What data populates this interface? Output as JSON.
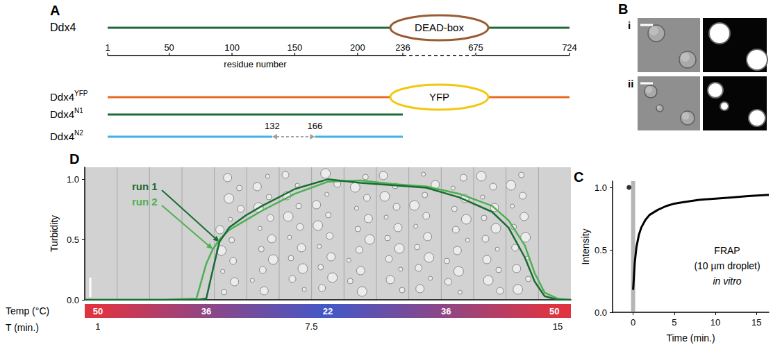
{
  "diagram": {
    "panel": "A",
    "axis": {
      "ticks": [
        1,
        50,
        100,
        150,
        200,
        236,
        675,
        724
      ],
      "title": "residue number"
    },
    "constructs": [
      {
        "name": "Ddx4",
        "start": 1,
        "end": 724,
        "color": "#1d6b38",
        "domain": {
          "label": "DEAD-box",
          "start": 236,
          "end": 675,
          "color": "#9a5b32"
        }
      },
      {
        "name": "Ddx4",
        "superscript": "YFP",
        "start": 1,
        "end": 724,
        "color": "#ea6a22",
        "domain": {
          "label": "YFP",
          "start": 236,
          "end": 675,
          "color": "#f2c80f"
        }
      },
      {
        "name": "Ddx4",
        "superscript": "N1",
        "start": 1,
        "end": 236,
        "color": "#1d6b38"
      },
      {
        "name": "Ddx4",
        "superscript": "N2",
        "start": 1,
        "end": 236,
        "color": "#3db2e4",
        "deletion": {
          "start": 132,
          "end": 166,
          "color": "#a0a0a0"
        }
      }
    ]
  },
  "images": {
    "panel": "B",
    "rows": [
      "i",
      "ii"
    ]
  },
  "chart_data": [
    {
      "panel": "D",
      "type": "line",
      "x": [
        0.6,
        1,
        2,
        3,
        4,
        4.3,
        4.5,
        4.7,
        5,
        5.5,
        6,
        7,
        8,
        9,
        10,
        11,
        12,
        13,
        13.5,
        14,
        14.3,
        14.6,
        15,
        15.4
      ],
      "series": [
        {
          "name": "run 1",
          "color": "#1a6b34",
          "values": [
            0,
            0,
            0,
            0,
            0,
            0.01,
            0.25,
            0.48,
            0.6,
            0.7,
            0.78,
            0.92,
            1.0,
            0.97,
            0.95,
            0.93,
            0.85,
            0.73,
            0.6,
            0.35,
            0.15,
            0.03,
            0,
            0
          ]
        },
        {
          "name": "run 2",
          "color": "#4cb050",
          "values": [
            0,
            0,
            0,
            0,
            0.01,
            0.3,
            0.42,
            0.5,
            0.58,
            0.66,
            0.74,
            0.88,
            0.98,
            0.99,
            0.96,
            0.94,
            0.88,
            0.78,
            0.66,
            0.45,
            0.22,
            0.06,
            0.01,
            0
          ]
        }
      ],
      "x_label": "T (min.)",
      "y_label": "Turbidity",
      "xlim": [
        0.6,
        15.4
      ],
      "xticks": [
        1,
        7.5,
        15
      ],
      "ylim": [
        0,
        1.1
      ],
      "yticks": [
        {
          "value": 0,
          "label": "0.0"
        },
        0.5,
        {
          "value": 1,
          "label": "1.0"
        }
      ],
      "temperature": {
        "label": "Temp (°C)",
        "x": [
          1,
          4.3,
          8,
          11.6,
          14.9
        ],
        "values": [
          50,
          36,
          22,
          36,
          50
        ]
      },
      "grid": false
    },
    {
      "panel": "C",
      "type": "line",
      "series": [
        {
          "type": "scatter",
          "marker": "circle",
          "color": "#000000",
          "x": [
            -0.5
          ],
          "values": [
            1.0
          ]
        },
        {
          "type": "line",
          "color": "#000000",
          "x": [
            0,
            0.2,
            0.4,
            0.7,
            1,
            1.5,
            2,
            3,
            4,
            5,
            6,
            8,
            10,
            12,
            14,
            16.5
          ],
          "values": [
            0.18,
            0.4,
            0.52,
            0.62,
            0.68,
            0.74,
            0.78,
            0.82,
            0.85,
            0.87,
            0.88,
            0.9,
            0.91,
            0.92,
            0.93,
            0.94
          ]
        }
      ],
      "bleach_band": [
        -0.25,
        0.25
      ],
      "x_label": "Time (min.)",
      "y_label": "Intensity",
      "xlim": [
        -2.5,
        16.5
      ],
      "xticks": [
        0,
        5,
        10,
        15
      ],
      "ylim": [
        0,
        1.05
      ],
      "yticks": [
        {
          "value": 0,
          "label": "0.0"
        },
        0.5,
        {
          "value": 1,
          "label": "1.0"
        }
      ],
      "annotation": [
        "FRAP",
        "(10 µm droplet)",
        "in vitro"
      ],
      "grid": false
    }
  ]
}
